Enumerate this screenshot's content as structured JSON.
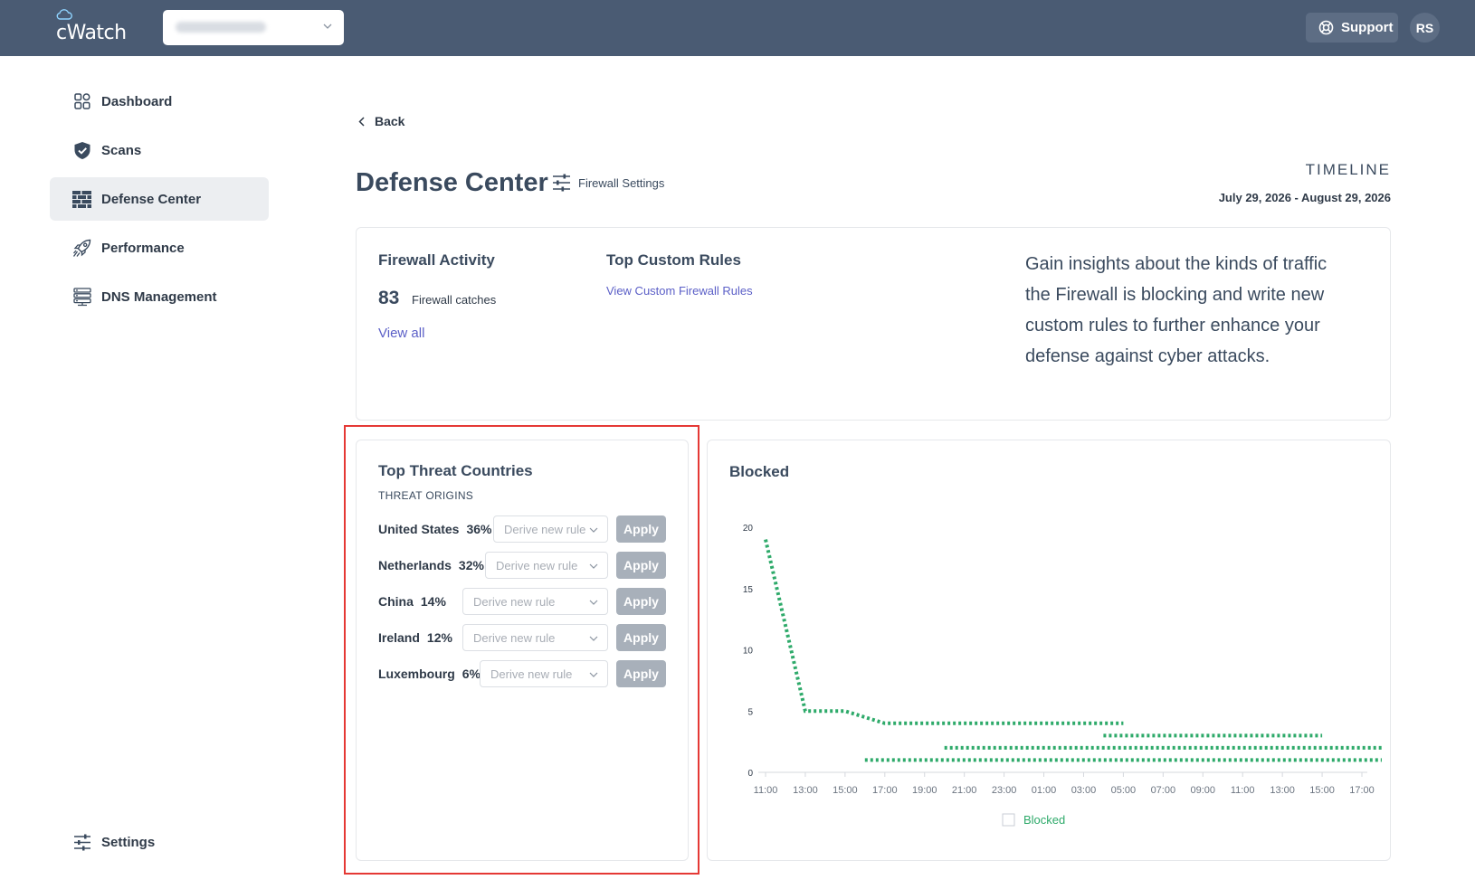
{
  "app": {
    "logo_text": "cWatch"
  },
  "header": {
    "support_label": "Support",
    "avatar_initials": "RS"
  },
  "sidebar": {
    "items": [
      {
        "label": "Dashboard",
        "icon": "dashboard-icon"
      },
      {
        "label": "Scans",
        "icon": "shield-icon"
      },
      {
        "label": "Defense Center",
        "icon": "firewall-icon",
        "active": true
      },
      {
        "label": "Performance",
        "icon": "rocket-icon"
      },
      {
        "label": "DNS Management",
        "icon": "server-icon"
      }
    ],
    "settings_label": "Settings"
  },
  "main": {
    "back_label": "Back",
    "title": "Defense Center",
    "firewall_settings_label": "Firewall Settings",
    "timeline_label": "TIMELINE",
    "timeline_range": "July 29, 2026 - August 29, 2026"
  },
  "activity": {
    "firewall_title": "Firewall Activity",
    "catches_count": "83",
    "catches_label": "Firewall catches",
    "view_all": "View all",
    "rules_title": "Top Custom Rules",
    "rules_link": "View Custom Firewall Rules",
    "insight": "Gain insights about the kinds of traffic the Firewall is blocking and write new custom rules to further enhance your defense against cyber attacks."
  },
  "threats": {
    "title": "Top Threat Countries",
    "subtitle": "THREAT ORIGINS",
    "rule_placeholder": "Derive new rule",
    "apply_label": "Apply",
    "rows": [
      {
        "country": "United States",
        "pct": "36%"
      },
      {
        "country": "Netherlands",
        "pct": "32%"
      },
      {
        "country": "China",
        "pct": "14%"
      },
      {
        "country": "Ireland",
        "pct": "12%"
      },
      {
        "country": "Luxembourg",
        "pct": "6%"
      }
    ]
  },
  "colors": {
    "series": "#2eaa6a",
    "topbar": "#4a5b73",
    "link": "#5b5fc7",
    "highlight_frame": "#e53935"
  },
  "chart_data": {
    "type": "line",
    "title": "Blocked",
    "legend": [
      "Blocked"
    ],
    "legend_position": "bottom",
    "line_style": "dotted",
    "x_ticks": [
      "11:00",
      "13:00",
      "15:00",
      "17:00",
      "19:00",
      "21:00",
      "23:00",
      "01:00",
      "03:00",
      "05:00",
      "07:00",
      "09:00",
      "11:00",
      "13:00",
      "15:00",
      "17:00"
    ],
    "y_ticks": [
      0,
      5,
      10,
      15,
      20
    ],
    "ylim": [
      0,
      20
    ],
    "series": [
      {
        "name": "Blocked",
        "values": [
          19,
          5,
          5,
          4,
          4,
          4,
          4,
          4,
          4,
          4
        ]
      },
      {
        "name": "Blocked",
        "values": [
          3,
          3,
          3,
          3,
          3,
          3
        ]
      },
      {
        "name": "Blocked",
        "values": [
          2,
          2,
          2,
          2,
          2,
          2,
          2,
          2,
          2,
          2,
          2
        ]
      },
      {
        "name": "Blocked",
        "values": [
          1,
          1,
          1,
          1,
          1,
          1,
          1,
          1,
          1,
          1,
          1,
          1,
          1
        ]
      }
    ]
  }
}
